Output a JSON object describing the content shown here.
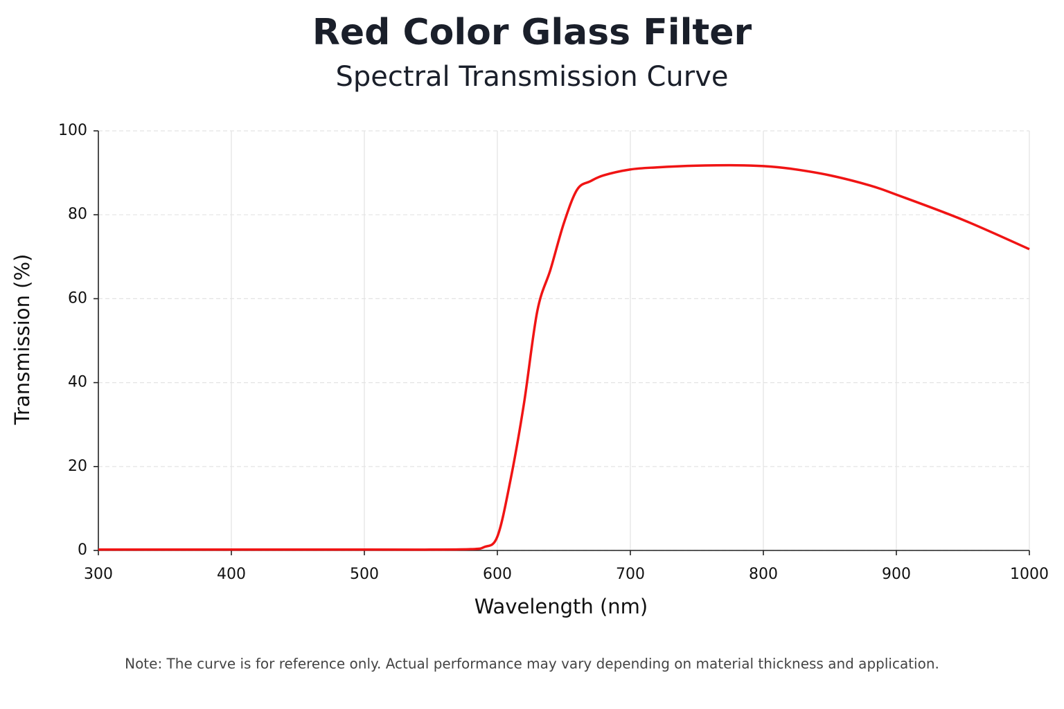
{
  "chart_data": {
    "type": "line",
    "title": "Red Color Glass Filter",
    "subtitle": "Spectral Transmission Curve",
    "x_label": "Wavelength (nm)",
    "y_label": "Transmission (%)",
    "note": "Note: The curve is for reference only. Actual performance may vary depending on material thickness and application.",
    "x": [
      300,
      400,
      500,
      550,
      580,
      590,
      600,
      610,
      620,
      630,
      640,
      650,
      660,
      670,
      680,
      700,
      720,
      750,
      780,
      800,
      820,
      850,
      880,
      900,
      950,
      1000
    ],
    "series": [
      {
        "name": "Transmission",
        "color": "#f01414",
        "values": [
          0.2,
          0.2,
          0.2,
          0.2,
          0.3,
          0.8,
          3.3,
          17,
          35,
          57,
          67,
          78,
          86,
          88,
          89.4,
          90.8,
          91.3,
          91.7,
          91.8,
          91.6,
          91,
          89.4,
          87,
          84.8,
          78.8,
          71.8
        ]
      }
    ],
    "xlim": [
      300,
      1000
    ],
    "xticks": [
      300,
      400,
      500,
      600,
      700,
      800,
      900,
      1000
    ],
    "ylim": [
      0,
      100
    ],
    "yticks": [
      0,
      20,
      40,
      60,
      80,
      100
    ],
    "grid": true
  }
}
